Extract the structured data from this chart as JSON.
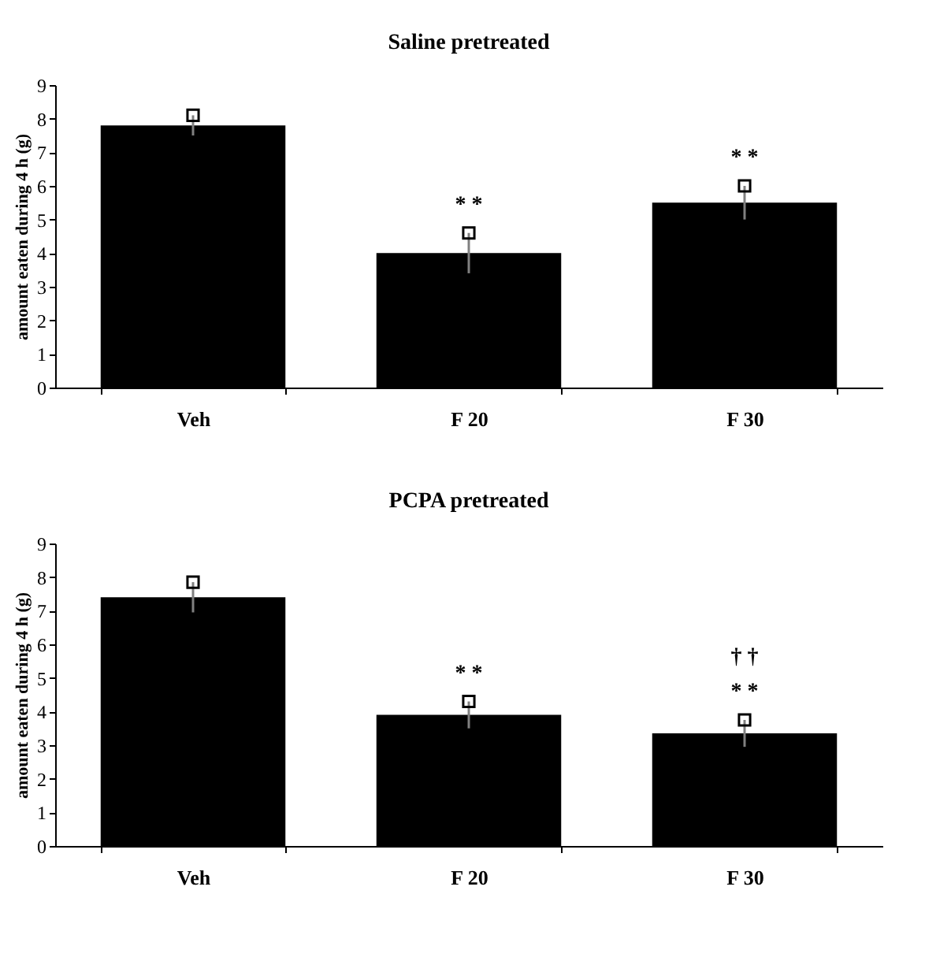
{
  "chart_data": [
    {
      "type": "bar",
      "title": "Saline pretreated",
      "ylabel": "amount eaten during 4 h (g)",
      "categories": [
        "Veh",
        "F 20",
        "F 30"
      ],
      "values": [
        7.8,
        4.0,
        5.5
      ],
      "errors": [
        0.3,
        0.6,
        0.5
      ],
      "color": "#000000",
      "ylim": [
        0,
        9
      ],
      "yticks": [
        0,
        1,
        2,
        3,
        4,
        5,
        6,
        7,
        8,
        9
      ],
      "annotations": [
        {
          "text": "* *",
          "x": "F 20",
          "y": 4.6
        },
        {
          "text": "* *",
          "x": "F 30",
          "y": 6.0
        }
      ]
    },
    {
      "type": "bar",
      "title": "PCPA pretreated",
      "ylabel": "amount eaten during 4 h (g)",
      "categories": [
        "Veh",
        "F 20",
        "F 30"
      ],
      "values": [
        7.4,
        3.9,
        3.35
      ],
      "errors": [
        0.45,
        0.4,
        0.4
      ],
      "color": "#000000",
      "ylim": [
        0,
        9
      ],
      "yticks": [
        0,
        1,
        2,
        3,
        4,
        5,
        6,
        7,
        8,
        9
      ],
      "annotations": [
        {
          "text": "* *",
          "x": "F 20",
          "y": 4.3
        },
        {
          "text": "* *",
          "x": "F 30",
          "y": 3.75
        },
        {
          "text": "† †",
          "x": "F 30",
          "y": 3.75
        }
      ]
    }
  ]
}
